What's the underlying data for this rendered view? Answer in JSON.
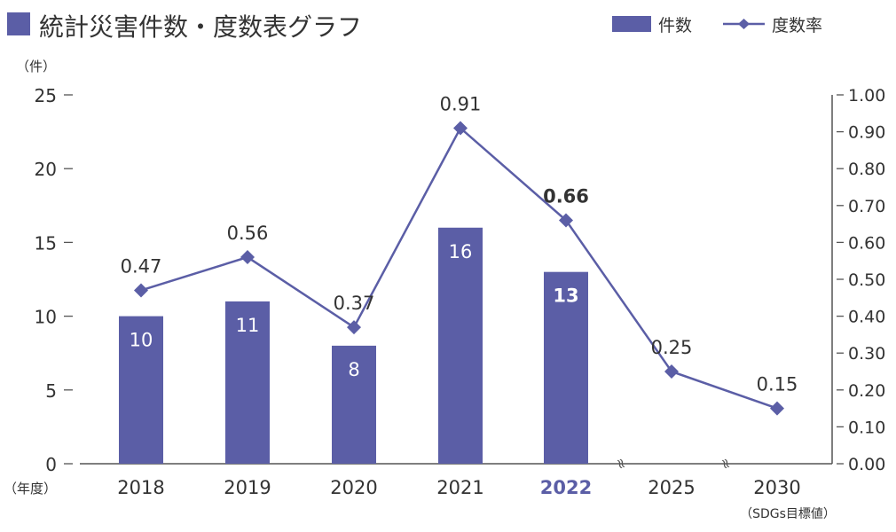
{
  "chart_data": {
    "type": "bar+line",
    "title": "統計災害件数・度数表グラフ",
    "categories": [
      "2018",
      "2019",
      "2020",
      "2021",
      "2022",
      "2025",
      "2030"
    ],
    "highlight_category": "2022",
    "category_note": "（SDGs目標値）",
    "left_axis": {
      "unit_label": "（件）",
      "range": [
        0,
        25
      ],
      "ticks": [
        "0",
        "5",
        "10",
        "15",
        "20",
        "25"
      ]
    },
    "right_axis": {
      "range": [
        0,
        1.0
      ],
      "ticks": [
        "0.00",
        "0.10",
        "0.20",
        "0.30",
        "0.40",
        "0.50",
        "0.60",
        "0.70",
        "0.80",
        "0.90",
        "1.00"
      ]
    },
    "x_axis_label": "（年度）",
    "series": [
      {
        "name": "件数",
        "kind": "bar",
        "axis": "left",
        "color": "#5b5ea6",
        "values": [
          10,
          11,
          8,
          16,
          13,
          null,
          null
        ],
        "labels": [
          "10",
          "11",
          "8",
          "16",
          "13",
          "",
          ""
        ]
      },
      {
        "name": "度数率",
        "kind": "line",
        "axis": "right",
        "color": "#5b5ea6",
        "values": [
          0.47,
          0.56,
          0.37,
          0.91,
          0.66,
          0.25,
          0.15
        ],
        "labels": [
          "0.47",
          "0.56",
          "0.37",
          "0.91",
          "0.66",
          "0.25",
          "0.15"
        ]
      }
    ],
    "axis_break_marks": [
      "≈",
      "≈"
    ],
    "legend_position": "top-right",
    "grid": false
  }
}
